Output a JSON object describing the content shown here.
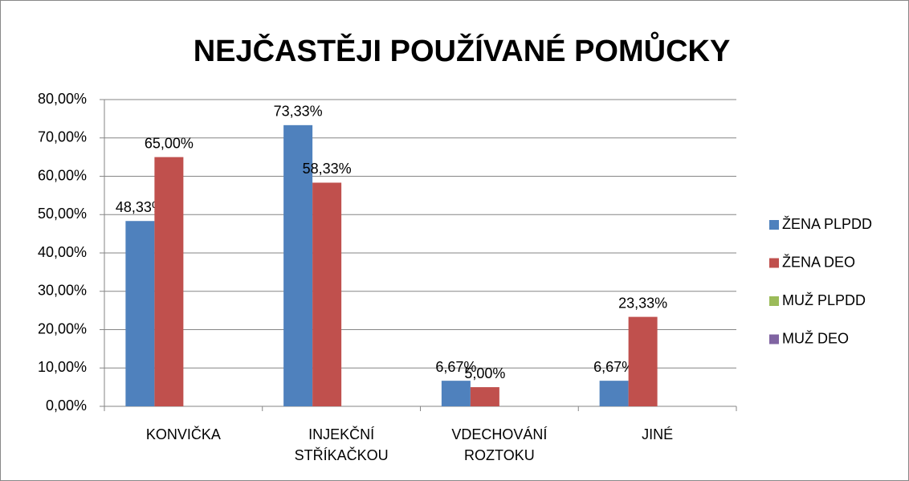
{
  "chart_data": {
    "type": "bar",
    "title": "NEJČASTĚJI POUŽÍVANÉ POMŮCKY",
    "categories": [
      "KONVIČKA",
      "INJEKČNÍ STŘÍKAČKOU",
      "VDECHOVÁNÍ ROZTOKU",
      "JINÉ"
    ],
    "series": [
      {
        "name": "ŽENA PLPDD",
        "color": "#4f81bd",
        "values": [
          48.33,
          73.33,
          6.67,
          6.67
        ],
        "value_labels": [
          "48,33%",
          "73,33%",
          "6,67%",
          "6,67%"
        ]
      },
      {
        "name": "ŽENA DEO",
        "color": "#c0504d",
        "values": [
          65,
          58.33,
          5,
          23.33
        ],
        "value_labels": [
          "65,00%",
          "58,33%",
          "5,00%",
          "23,33%"
        ]
      },
      {
        "name": "MUŽ PLPDD",
        "color": "#9bbb59",
        "values": [
          null,
          null,
          null,
          null
        ]
      },
      {
        "name": "MUŽ DEO",
        "color": "#8064a2",
        "values": [
          null,
          null,
          null,
          null
        ]
      }
    ],
    "ylim": [
      0,
      80
    ],
    "yticks": [
      {
        "value": 0,
        "label": "0,00%"
      },
      {
        "value": 10,
        "label": "10,00%"
      },
      {
        "value": 20,
        "label": "20,00%"
      },
      {
        "value": 30,
        "label": "30,00%"
      },
      {
        "value": 40,
        "label": "40,00%"
      },
      {
        "value": 50,
        "label": "50,00%"
      },
      {
        "value": 60,
        "label": "60,00%"
      },
      {
        "value": 70,
        "label": "70,00%"
      },
      {
        "value": 80,
        "label": "80,00%"
      }
    ],
    "grid": true,
    "legend": "right"
  }
}
